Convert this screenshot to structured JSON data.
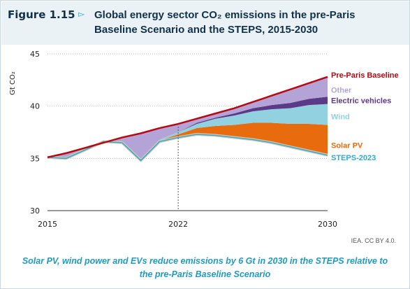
{
  "figure": {
    "label": "Figure 1.15",
    "arrow": "▻",
    "title": "Global energy sector CO₂ emissions in the pre-Paris Baseline Scenario and the STEPS, 2015-2030",
    "credit": "IEA. CC BY 4.0.",
    "caption": "Solar PV, wind power and EVs reduce emissions by 6 Gt in 2030 in the STEPS relative to the pre-Paris Baseline Scenario"
  },
  "colors": {
    "baseline": "#b50a12",
    "other": "#b3a3d6",
    "ev": "#5b3a87",
    "wind": "#92d1e0",
    "solar": "#e86c0e",
    "steps": "#35a9c9",
    "historical": "#d4c9b8"
  },
  "chart_data": {
    "type": "area",
    "ylabel": "Gt CO₂",
    "xlim": [
      2015,
      2030
    ],
    "ylim": [
      30,
      45
    ],
    "x_ticks": [
      "2015",
      "2022",
      "2030"
    ],
    "y_ticks": [
      "30",
      "35",
      "40",
      "45"
    ],
    "grid": "dotted horizontal",
    "legend": "direct labels at right end of series",
    "x": [
      2015,
      2016,
      2017,
      2018,
      2019,
      2020,
      2021,
      2022,
      2023,
      2024,
      2025,
      2026,
      2027,
      2028,
      2029,
      2030
    ],
    "baseline": {
      "name": "Pre-Paris Baseline",
      "values": [
        35.1,
        35.5,
        36.0,
        36.5,
        37.0,
        37.4,
        37.9,
        38.3,
        38.8,
        39.3,
        39.8,
        40.4,
        41.0,
        41.6,
        42.2,
        42.8
      ]
    },
    "steps": {
      "name": "STEPS-2023",
      "values": [
        35.1,
        35.0,
        35.8,
        36.6,
        36.5,
        34.8,
        36.6,
        37.0,
        37.3,
        37.2,
        37.0,
        36.8,
        36.5,
        36.1,
        35.7,
        35.3
      ]
    },
    "series": [
      {
        "name": "Solar PV",
        "values": [
          0,
          0,
          0,
          0,
          0,
          0,
          0.1,
          0.3,
          0.6,
          0.9,
          1.2,
          1.6,
          1.9,
          2.2,
          2.6,
          2.9
        ]
      },
      {
        "name": "Wind",
        "values": [
          0,
          0,
          0,
          0,
          0,
          0,
          0.1,
          0.2,
          0.4,
          0.7,
          0.9,
          1.1,
          1.3,
          1.5,
          1.8,
          2.0
        ]
      },
      {
        "name": "Electric vehicles",
        "values": [
          0,
          0,
          0,
          0,
          0,
          0,
          0.0,
          0.0,
          0.1,
          0.1,
          0.2,
          0.3,
          0.4,
          0.5,
          0.6,
          0.7
        ]
      },
      {
        "name": "Other",
        "values": [
          0,
          0.5,
          0.2,
          -0.1,
          0.5,
          2.6,
          1.1,
          0.8,
          0.4,
          0.4,
          0.5,
          0.6,
          0.9,
          1.3,
          1.5,
          1.9
        ]
      }
    ]
  }
}
